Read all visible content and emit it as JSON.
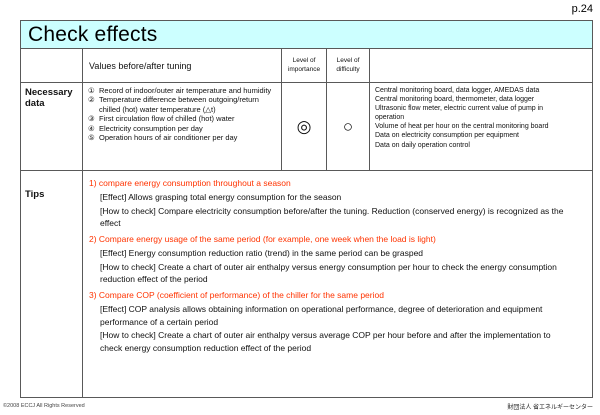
{
  "page_number": "p.24",
  "title": "Check effects",
  "table": {
    "header": {
      "values": "Values before/after tuning",
      "importance": "Level of importance",
      "difficulty": "Level of difficulty"
    },
    "necessary_data": {
      "label": "Necessary data",
      "items": [
        {
          "num": "①",
          "text": "Record of indoor/outer air temperature and humidity"
        },
        {
          "num": "②",
          "text": "Temperature difference between outgoing/return chilled (hot) water temperature (△t)"
        },
        {
          "num": "③",
          "text": "First circulation flow of chilled (hot) water"
        },
        {
          "num": "④",
          "text": "Electricity consumption per day"
        },
        {
          "num": "⑤",
          "text": "Operation hours of air conditioner per day"
        }
      ],
      "importance": "◎",
      "difficulty": "○",
      "sources": [
        "Central monitoring board, data logger, AMEDAS data",
        "Central monitoring board, thermometer, data logger",
        "Ultrasonic flow meter, electric current value of pump in operation",
        "Volume of heat per hour on the central monitoring board",
        "Data on electricity consumption per equipment",
        "Data on daily operation control"
      ]
    },
    "tips": {
      "label": "Tips",
      "sections": [
        {
          "heading": "1) compare energy consumption throughout a season",
          "effect": "[Effect] Allows grasping total energy consumption for the season",
          "how_to_check": "[How to check] Compare electricity consumption before/after the tuning. Reduction (conserved energy) is recognized as the effect"
        },
        {
          "heading": "2) Compare energy usage of the same period (for example, one week when the load is light)",
          "effect": "[Effect] Energy consumption reduction ratio (trend) in the same period can be grasped",
          "how_to_check": "[How to check] Create a chart of outer air enthalpy versus energy consumption per hour to check the energy consumption reduction effect of the period"
        },
        {
          "heading": "3) Compare COP (coefficient of performance) of the chiller for the same period",
          "effect": "[Effect] COP analysis allows obtaining information on operational performance, degree of deterioration and equipment performance of a certain period",
          "how_to_check": "[How to check] Create a chart of outer air enthalpy versus average COP per hour before and after the implementation to check energy consumption reduction effect of the period"
        }
      ]
    }
  },
  "footer": {
    "copyright": "©2008  ECCJ All Rights Reserved",
    "organization": "財団法人 省エネルギーセンター"
  },
  "colors": {
    "title_bg": "#CCFFFF",
    "accent_red": "#FF3300",
    "border": "#595959"
  }
}
